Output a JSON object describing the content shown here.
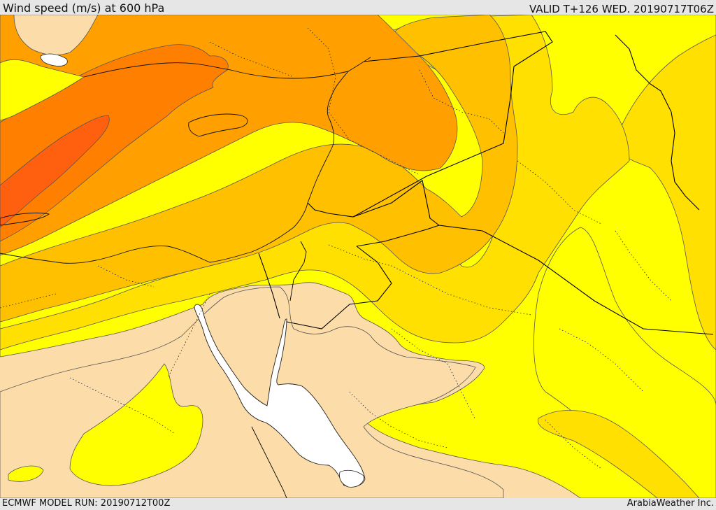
{
  "header": {
    "title": "Wind speed (m/s) at 600 hPa",
    "valid": "VALID T+126 WED. 20190717T06Z"
  },
  "footer": {
    "model_run": "ECMWF MODEL RUN: 20190712T00Z",
    "credit": "ArabiaWeather Inc."
  },
  "palette": {
    "tan": "#fcdca8",
    "yellow": "#ffff00",
    "gold": "#ffe000",
    "amber": "#ffc000",
    "orange": "#ffa000",
    "dark_orange": "#ff8000",
    "deep_orange": "#ff6010",
    "sea": "#ffffff",
    "contour": "#555555",
    "border": "#000000"
  }
}
